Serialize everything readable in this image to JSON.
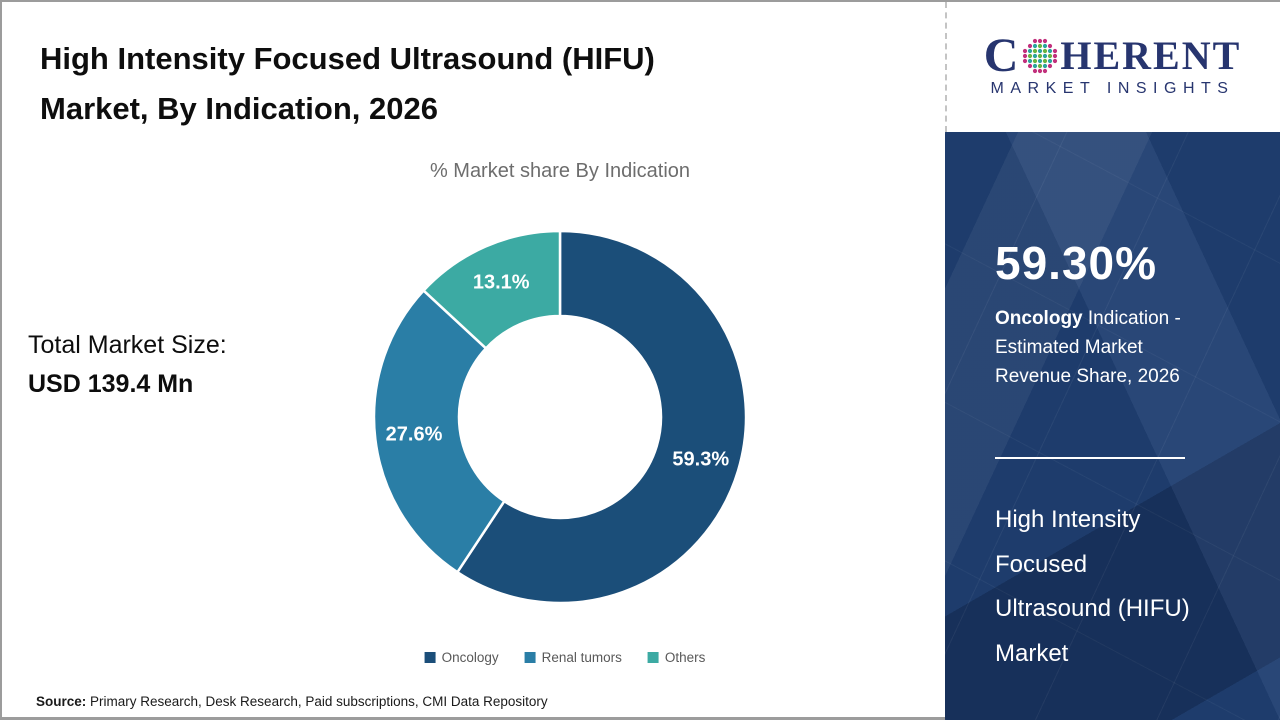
{
  "header": {
    "title_line1": "High Intensity Focused Ultrasound (HIFU)",
    "title_line2": "Market, By Indication, 2026"
  },
  "main": {
    "chart_subtitle": "% Market share By Indication",
    "total_market_label": "Total Market Size:",
    "total_market_value": "USD 139.4 Mn",
    "source_label": "Source:",
    "source_text": " Primary Research, Desk Research, Paid subscriptions, CMI Data Repository"
  },
  "sidebar": {
    "logo": {
      "word_prefix": "C",
      "word_suffix": "HERENT",
      "tagline": "MARKET INSIGHTS",
      "globe_icon": "dotted-globe-icon",
      "brand_navy": "#27356f",
      "dot_colors": [
        "#6ab43e",
        "#2aa5a0",
        "#c2307c"
      ]
    },
    "stat_value": "59.30%",
    "stat_desc_bold": "Oncology",
    "stat_desc_line1_rest": " Indication -",
    "stat_desc_line2": "Estimated Market",
    "stat_desc_line3": "Revenue Share, 2026",
    "market_name_lines": [
      "High Intensity",
      "Focused",
      "Ultrasound (HIFU)",
      "Market"
    ],
    "background_color": "#1e3c6c"
  },
  "chart_data": {
    "type": "pie",
    "subtype": "donut",
    "title": "% Market share By Indication",
    "categories": [
      "Oncology",
      "Renal tumors",
      "Others"
    ],
    "values": [
      59.3,
      27.6,
      13.1
    ],
    "labels": [
      "59.3%",
      "27.6%",
      "13.1%"
    ],
    "colors": [
      "#1b4e79",
      "#2a7ea6",
      "#3caaa3"
    ],
    "start_angle_deg": 0,
    "direction": "clockwise",
    "donut_hole_ratio": 0.54,
    "legend_position": "bottom",
    "total_market_size": "USD 139.4 Mn"
  }
}
